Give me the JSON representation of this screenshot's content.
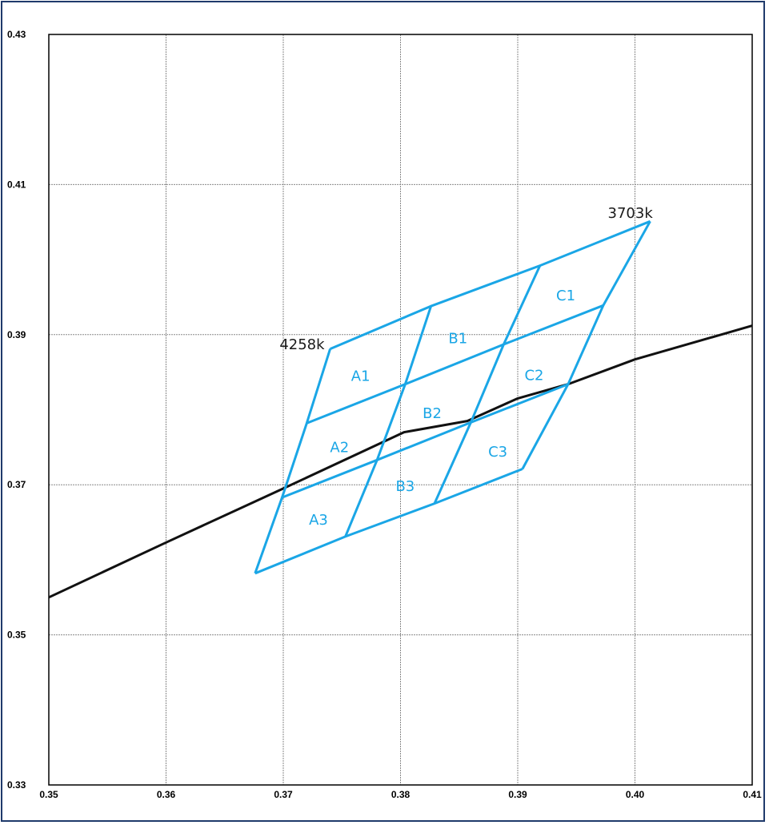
{
  "chart_data": {
    "type": "line",
    "title": "",
    "xlabel": "",
    "ylabel": "",
    "xlim": [
      0.35,
      0.41
    ],
    "ylim": [
      0.33,
      0.43
    ],
    "x_ticks": [
      0.35,
      0.36,
      0.37,
      0.38,
      0.39,
      0.4,
      0.41
    ],
    "x_tick_labels": [
      "0.35",
      "0.36",
      "0.37",
      "0.38",
      "0.39",
      "0.40",
      "0.41"
    ],
    "y_ticks": [
      0.33,
      0.35,
      0.37,
      0.39,
      0.41,
      0.43
    ],
    "y_tick_labels": [
      "0.33",
      "0.35",
      "0.37",
      "0.39",
      "0.41",
      "0.43"
    ],
    "grid": true,
    "colors": {
      "locus": "#111111",
      "bins": "#1aa6e6",
      "grid": "#8a8a8a"
    },
    "series": [
      {
        "values": [
          [
            0.35,
            0.355
          ],
          [
            0.36,
            0.3623
          ],
          [
            0.37,
            0.3695
          ],
          [
            0.3803,
            0.377
          ],
          [
            0.3857,
            0.3785
          ],
          [
            0.39,
            0.3815
          ],
          [
            0.3943,
            0.3834
          ],
          [
            0.4,
            0.3867
          ],
          [
            0.41,
            0.3912
          ]
        ]
      }
    ],
    "bin_grid": [
      [
        [
          0.374,
          0.3881
        ],
        [
          0.3826,
          0.3938
        ],
        [
          0.3919,
          0.3992
        ],
        [
          0.4013,
          0.4051
        ]
      ],
      [
        [
          0.372,
          0.3782
        ],
        [
          0.3804,
          0.3834
        ],
        [
          0.3888,
          0.3887
        ],
        [
          0.3973,
          0.3939
        ]
      ],
      [
        [
          0.3699,
          0.3683
        ],
        [
          0.378,
          0.3733
        ],
        [
          0.386,
          0.3783
        ],
        [
          0.3943,
          0.3834
        ]
      ],
      [
        [
          0.3676,
          0.3582
        ],
        [
          0.3753,
          0.3631
        ],
        [
          0.3829,
          0.3675
        ],
        [
          0.3904,
          0.3721
        ]
      ]
    ],
    "bins": [
      {
        "label": "A1",
        "x": 0.3766,
        "y": 0.3845
      },
      {
        "label": "B1",
        "x": 0.3849,
        "y": 0.3895
      },
      {
        "label": "C1",
        "x": 0.3941,
        "y": 0.3952
      },
      {
        "label": "A2",
        "x": 0.3748,
        "y": 0.375
      },
      {
        "label": "B2",
        "x": 0.3827,
        "y": 0.3795
      },
      {
        "label": "C2",
        "x": 0.3914,
        "y": 0.3846
      },
      {
        "label": "A3",
        "x": 0.373,
        "y": 0.3653
      },
      {
        "label": "B3",
        "x": 0.3804,
        "y": 0.3698
      },
      {
        "label": "C3",
        "x": 0.3883,
        "y": 0.3744
      }
    ],
    "annotations": [
      {
        "text": "4258k",
        "x": 0.3716,
        "y": 0.3887
      },
      {
        "text": "3703k",
        "x": 0.3996,
        "y": 0.4062
      }
    ]
  }
}
